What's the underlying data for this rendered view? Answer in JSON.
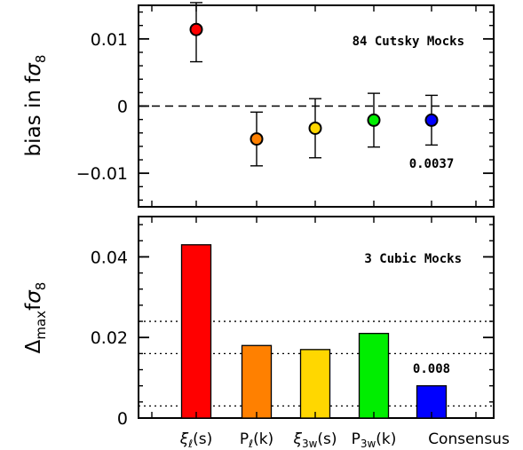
{
  "chart_data": [
    {
      "type": "scatter",
      "panel": "top",
      "ylabel": "bias in fσ8",
      "ylim": [
        -0.015,
        0.015
      ],
      "yticks": [
        -0.01,
        0,
        0.01
      ],
      "ytick_labels": [
        "−0.01",
        "0",
        "0.01"
      ],
      "zero_line": "dashed",
      "annotation": "84 Cutsky Mocks",
      "categories": [
        "ξℓ(s)",
        "Pℓ(k)",
        "ξ3w(s)",
        "P3w(k)",
        "Consensus"
      ],
      "points": [
        {
          "category": "ξℓ(s)",
          "value": 0.0114,
          "err_low": 0.0066,
          "err_high": 0.0154,
          "color": "#ff0000"
        },
        {
          "category": "Pℓ(k)",
          "value": -0.0049,
          "err_low": -0.0089,
          "err_high": -0.0009,
          "color": "#ff8000"
        },
        {
          "category": "ξ3w(s)",
          "value": -0.0033,
          "err_low": -0.0077,
          "err_high": 0.0011,
          "color": "#ffd700"
        },
        {
          "category": "P3w(k)",
          "value": -0.0021,
          "err_low": -0.0061,
          "err_high": 0.0019,
          "color": "#00ee00"
        },
        {
          "category": "Consensus",
          "value": -0.0021,
          "err_low": -0.0058,
          "err_high": 0.0016,
          "color": "#0000ff"
        }
      ],
      "consensus_label": "0.0037"
    },
    {
      "type": "bar",
      "panel": "bottom",
      "ylabel": "Δmax fσ8",
      "ylim": [
        0,
        0.05
      ],
      "yticks": [
        0,
        0.02,
        0.04
      ],
      "ytick_labels": [
        "0",
        "0.02",
        "0.04"
      ],
      "annotation": "3 Cubic Mocks",
      "categories": [
        "ξℓ(s)",
        "Pℓ(k)",
        "ξ3w(s)",
        "P3w(k)",
        "Consensus"
      ],
      "values": [
        0.043,
        0.018,
        0.017,
        0.021,
        0.008
      ],
      "colors": [
        "#ff0000",
        "#ff8000",
        "#ffd700",
        "#00ee00",
        "#0000ff"
      ],
      "reference_lines": [
        0.003,
        0.016,
        0.024
      ],
      "consensus_label": "0.008"
    }
  ]
}
